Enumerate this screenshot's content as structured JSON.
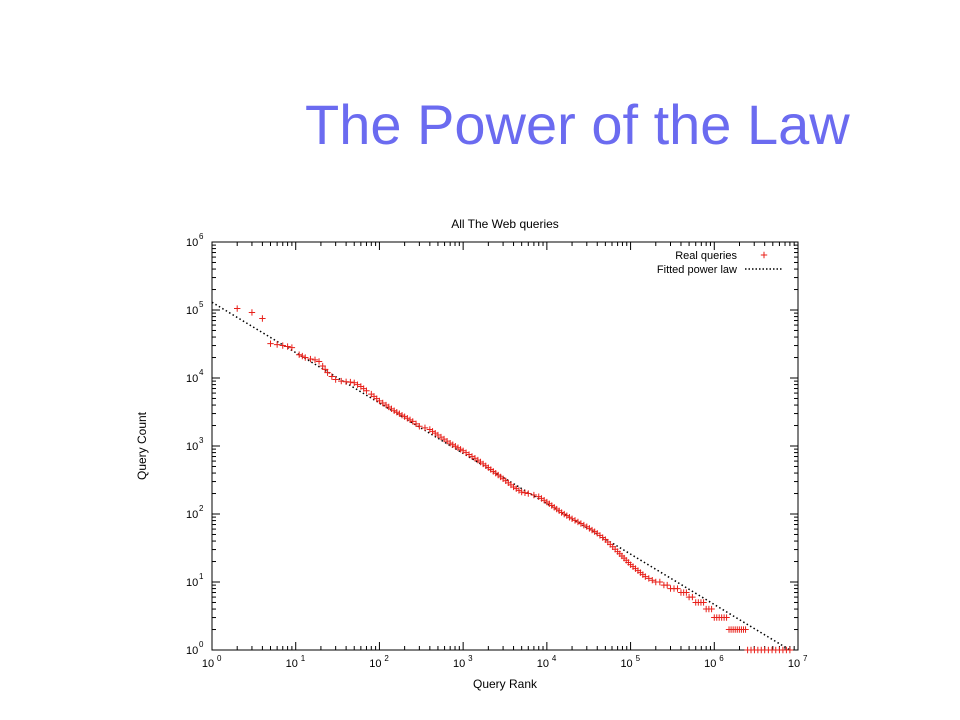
{
  "slide": {
    "title": "The Power of the Law"
  },
  "chart_data": {
    "type": "scatter",
    "title": "All The Web queries",
    "xlabel": "Query Rank",
    "ylabel": "Query Count",
    "x_scale": "log",
    "y_scale": "log",
    "xlim": [
      1,
      10000000
    ],
    "ylim": [
      1,
      1000000
    ],
    "x_ticks": [
      {
        "base": "10",
        "exp": "0"
      },
      {
        "base": "10",
        "exp": "1"
      },
      {
        "base": "10",
        "exp": "2"
      },
      {
        "base": "10",
        "exp": "3"
      },
      {
        "base": "10",
        "exp": "4"
      },
      {
        "base": "10",
        "exp": "5"
      },
      {
        "base": "10",
        "exp": "6"
      },
      {
        "base": "10",
        "exp": "7"
      }
    ],
    "y_ticks": [
      {
        "base": "10",
        "exp": "0"
      },
      {
        "base": "10",
        "exp": "1"
      },
      {
        "base": "10",
        "exp": "2"
      },
      {
        "base": "10",
        "exp": "3"
      },
      {
        "base": "10",
        "exp": "4"
      },
      {
        "base": "10",
        "exp": "5"
      },
      {
        "base": "10",
        "exp": "6"
      }
    ],
    "grid": false,
    "legend_position": "top-right",
    "marker_color": "#e8201a",
    "series": [
      {
        "name": "Real queries",
        "style": "plus-markers",
        "color": "#e8201a",
        "points": [
          [
            2,
            105000
          ],
          [
            3,
            92000
          ],
          [
            4,
            75000
          ],
          [
            5,
            32000
          ],
          [
            6,
            31000
          ],
          [
            7,
            30000
          ],
          [
            8,
            29000
          ],
          [
            9,
            28000
          ],
          [
            11,
            22000
          ],
          [
            12,
            21000
          ],
          [
            13,
            20000
          ],
          [
            15,
            19000
          ],
          [
            17,
            18500
          ],
          [
            19,
            17500
          ],
          [
            21,
            15000
          ],
          [
            24,
            12000
          ],
          [
            27,
            10500
          ],
          [
            30,
            9500
          ],
          [
            35,
            9000
          ],
          [
            40,
            8800
          ],
          [
            45,
            8700
          ],
          [
            50,
            8500
          ],
          [
            60,
            7500
          ],
          [
            70,
            6500
          ],
          [
            80,
            5800
          ],
          [
            100,
            4600
          ],
          [
            120,
            4000
          ],
          [
            150,
            3300
          ],
          [
            200,
            2700
          ],
          [
            250,
            2300
          ],
          [
            300,
            1950
          ],
          [
            350,
            1850
          ],
          [
            400,
            1750
          ],
          [
            500,
            1450
          ],
          [
            700,
            1100
          ],
          [
            1000,
            850
          ],
          [
            1500,
            620
          ],
          [
            2000,
            480
          ],
          [
            3000,
            330
          ],
          [
            4000,
            250
          ],
          [
            5000,
            210
          ],
          [
            6000,
            200
          ],
          [
            7000,
            190
          ],
          [
            8000,
            180
          ],
          [
            10000,
            150
          ],
          [
            15000,
            105
          ],
          [
            20000,
            85
          ],
          [
            30000,
            65
          ],
          [
            40000,
            52
          ],
          [
            50000,
            42
          ],
          [
            70000,
            28
          ],
          [
            100000,
            18
          ],
          [
            150000,
            12
          ],
          [
            200000,
            10
          ],
          [
            250000,
            9
          ],
          [
            300000,
            8
          ],
          [
            400000,
            7
          ],
          [
            500000,
            6
          ],
          [
            600000,
            5
          ],
          [
            800000,
            4
          ],
          [
            1000000,
            3
          ],
          [
            1500000,
            2
          ],
          [
            2500000,
            1
          ],
          [
            4000000,
            1
          ],
          [
            6000000,
            1
          ],
          [
            8000000,
            1
          ]
        ]
      },
      {
        "name": "Fitted power law",
        "style": "dotted-line",
        "color": "#000000",
        "points": [
          [
            1,
            130000
          ],
          [
            8000000,
            1
          ]
        ]
      }
    ]
  }
}
